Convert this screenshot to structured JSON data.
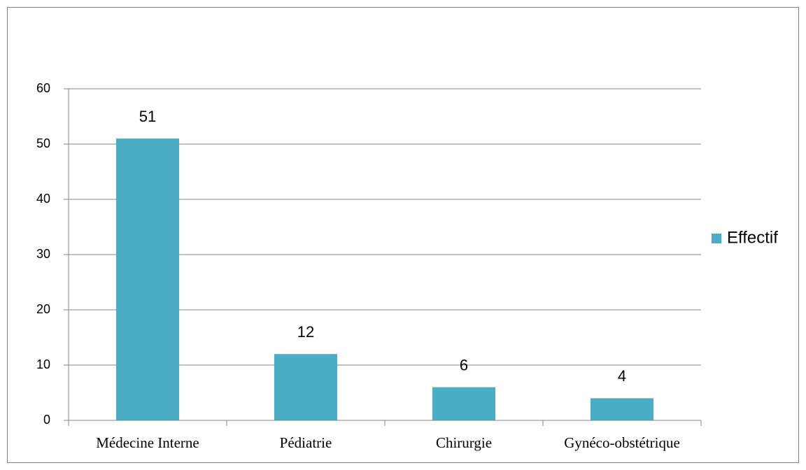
{
  "chart_data": {
    "type": "bar",
    "categories": [
      "Médecine Interne",
      "Pédiatrie",
      "Chirurgie",
      "Gynéco-obstétrique"
    ],
    "series": [
      {
        "name": "Effectif",
        "color": "#4bacc6",
        "values": [
          51,
          12,
          6,
          4
        ]
      }
    ],
    "ylim": [
      0,
      60
    ],
    "yticks": [
      0,
      10,
      20,
      30,
      40,
      50,
      60
    ],
    "grid": true,
    "legend": "right"
  }
}
